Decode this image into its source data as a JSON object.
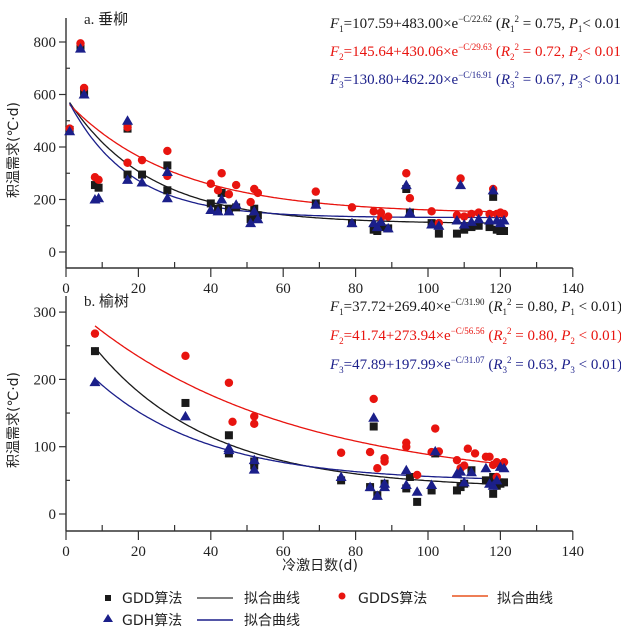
{
  "chart_data": [
    {
      "type": "scatter",
      "panel_label": "a. 垂柳",
      "xlabel": "",
      "ylabel": "积温需求(℃·d)",
      "xlim": [
        0,
        140
      ],
      "ylim": [
        0,
        900
      ],
      "xticks": [
        0,
        20,
        40,
        60,
        80,
        100,
        120,
        140
      ],
      "yticks": [
        0,
        200,
        400,
        600,
        800
      ],
      "grid": false,
      "equations": [
        {
          "lhs": "F",
          "sub": "1",
          "text": "=107.59+483.00×e",
          "exp": "−C/22.62",
          "stats_open": " (R",
          "r_sub": "1",
          "r_sup": "2",
          "stats_mid": " = 0.75, P",
          "p_sub": "1",
          "stats_end": "< 0.01)",
          "color": "#1a1a1a"
        },
        {
          "lhs": "F",
          "sub": "2",
          "text": "=145.64+430.06×e",
          "exp": "−C/29.63",
          "stats_open": " (R",
          "r_sub": "2",
          "r_sup": "2",
          "stats_mid": " = 0.72, P",
          "p_sub": "2",
          "stats_end": "< 0.01)",
          "color": "#e8140f"
        },
        {
          "lhs": "F",
          "sub": "3",
          "text": "=130.80+462.20×e",
          "exp": "−C/16.91",
          "stats_open": " (R",
          "r_sub": "3",
          "r_sup": "2",
          "stats_mid": " = 0.67, P",
          "p_sub": "3",
          "stats_end": "< 0.01)",
          "color": "#1b1f8a"
        }
      ],
      "fits": [
        {
          "name": "GDD拟合曲线",
          "a": 107.59,
          "b": 483.0,
          "c": 22.62,
          "x_range": [
            1,
            121
          ],
          "color": "#1a1a1a"
        },
        {
          "name": "GDDS拟合曲线",
          "a": 145.64,
          "b": 430.06,
          "c": 29.63,
          "x_range": [
            1,
            121
          ],
          "color": "#e8140f"
        },
        {
          "name": "GDH拟合曲线",
          "a": 130.8,
          "b": 462.2,
          "c": 16.91,
          "x_range": [
            1,
            121
          ],
          "color": "#1b1f8a"
        }
      ],
      "series": [
        {
          "name": "GDD算法",
          "marker": "square",
          "color": "#1a1a1a",
          "points": [
            [
              1,
              465
            ],
            [
              4,
              785
            ],
            [
              5,
              610
            ],
            [
              8,
              255
            ],
            [
              9,
              245
            ],
            [
              17,
              470
            ],
            [
              17,
              295
            ],
            [
              21,
              295
            ],
            [
              28,
              330
            ],
            [
              28,
              235
            ],
            [
              40,
              185
            ],
            [
              42,
              165
            ],
            [
              43,
              225
            ],
            [
              45,
              165
            ],
            [
              47,
              170
            ],
            [
              51,
              125
            ],
            [
              52,
              165
            ],
            [
              53,
              140
            ],
            [
              69,
              185
            ],
            [
              79,
              110
            ],
            [
              85,
              85
            ],
            [
              86,
              80
            ],
            [
              87,
              95
            ],
            [
              89,
              90
            ],
            [
              94,
              240
            ],
            [
              95,
              150
            ],
            [
              101,
              110
            ],
            [
              103,
              70
            ],
            [
              108,
              70
            ],
            [
              110,
              85
            ],
            [
              112,
              95
            ],
            [
              114,
              100
            ],
            [
              117,
              95
            ],
            [
              118,
              210
            ],
            [
              119,
              85
            ],
            [
              120,
              80
            ],
            [
              121,
              80
            ]
          ]
        },
        {
          "name": "GDDS算法",
          "marker": "circle",
          "color": "#e8140f",
          "points": [
            [
              1,
              470
            ],
            [
              4,
              795
            ],
            [
              5,
              625
            ],
            [
              8,
              285
            ],
            [
              9,
              275
            ],
            [
              17,
              475
            ],
            [
              17,
              340
            ],
            [
              21,
              350
            ],
            [
              28,
              385
            ],
            [
              28,
              290
            ],
            [
              40,
              260
            ],
            [
              42,
              235
            ],
            [
              43,
              300
            ],
            [
              45,
              220
            ],
            [
              47,
              255
            ],
            [
              51,
              190
            ],
            [
              52,
              240
            ],
            [
              53,
              225
            ],
            [
              69,
              230
            ],
            [
              79,
              170
            ],
            [
              85,
              155
            ],
            [
              87,
              150
            ],
            [
              87,
              130
            ],
            [
              89,
              135
            ],
            [
              94,
              300
            ],
            [
              95,
              205
            ],
            [
              101,
              155
            ],
            [
              103,
              110
            ],
            [
              108,
              140
            ],
            [
              109,
              280
            ],
            [
              110,
              135
            ],
            [
              112,
              145
            ],
            [
              114,
              150
            ],
            [
              117,
              145
            ],
            [
              118,
              240
            ],
            [
              119,
              145
            ],
            [
              120,
              150
            ],
            [
              121,
              145
            ]
          ]
        },
        {
          "name": "GDH算法",
          "marker": "triangle",
          "color": "#1b1f8a",
          "points": [
            [
              1,
              460
            ],
            [
              4,
              775
            ],
            [
              5,
              600
            ],
            [
              8,
              200
            ],
            [
              9,
              205
            ],
            [
              17,
              500
            ],
            [
              17,
              275
            ],
            [
              21,
              265
            ],
            [
              28,
              305
            ],
            [
              28,
              205
            ],
            [
              40,
              160
            ],
            [
              42,
              155
            ],
            [
              43,
              200
            ],
            [
              45,
              155
            ],
            [
              47,
              180
            ],
            [
              51,
              110
            ],
            [
              52,
              155
            ],
            [
              53,
              125
            ],
            [
              69,
              180
            ],
            [
              79,
              110
            ],
            [
              85,
              110
            ],
            [
              86,
              95
            ],
            [
              87,
              115
            ],
            [
              89,
              90
            ],
            [
              94,
              255
            ],
            [
              95,
              150
            ],
            [
              101,
              105
            ],
            [
              103,
              100
            ],
            [
              108,
              120
            ],
            [
              109,
              255
            ],
            [
              110,
              105
            ],
            [
              112,
              115
            ],
            [
              114,
              125
            ],
            [
              117,
              120
            ],
            [
              118,
              235
            ],
            [
              119,
              120
            ],
            [
              120,
              110
            ],
            [
              121,
              120
            ]
          ]
        }
      ]
    },
    {
      "type": "scatter",
      "panel_label": "b. 榆树",
      "xlabel": "冷激日数(d)",
      "ylabel": "积温需求(℃·d)",
      "xlim": [
        0,
        140
      ],
      "ylim": [
        -25,
        320
      ],
      "xticks": [
        0,
        20,
        40,
        60,
        80,
        100,
        120,
        140
      ],
      "yticks": [
        0,
        100,
        200,
        300
      ],
      "grid": false,
      "equations": [
        {
          "lhs": "F",
          "sub": "1",
          "text": "=37.72+269.40×e",
          "exp": "−C/31.90",
          "stats_open": " (R",
          "r_sub": "1",
          "r_sup": "2",
          "stats_mid": " = 0.80, P",
          "p_sub": "1",
          "stats_end": " < 0.01)",
          "color": "#1a1a1a"
        },
        {
          "lhs": "F",
          "sub": "2",
          "text": "=41.74+273.94×e",
          "exp": "−C/56.56",
          "stats_open": " (R",
          "r_sub": "2",
          "r_sup": "2",
          "stats_mid": " = 0.80, P",
          "p_sub": "2",
          "stats_end": " < 0.01)",
          "color": "#e8140f"
        },
        {
          "lhs": "F",
          "sub": "3",
          "text": "=47.89+197.99×e",
          "exp": "−C/31.07",
          "stats_open": " (R",
          "r_sub": "3",
          "r_sup": "2",
          "stats_mid": " = 0.63, P",
          "p_sub": "3",
          "stats_end": " < 0.01)",
          "color": "#1b1f8a"
        }
      ],
      "fits": [
        {
          "name": "GDD拟合曲线",
          "a": 37.72,
          "b": 269.4,
          "c": 31.9,
          "x_range": [
            8,
            121
          ],
          "color": "#1a1a1a"
        },
        {
          "name": "GDDS拟合曲线",
          "a": 41.74,
          "b": 273.94,
          "c": 56.56,
          "x_range": [
            8,
            121
          ],
          "color": "#e8140f"
        },
        {
          "name": "GDH拟合曲线",
          "a": 47.89,
          "b": 197.99,
          "c": 31.07,
          "x_range": [
            8,
            121
          ],
          "color": "#1b1f8a"
        }
      ],
      "series": [
        {
          "name": "GDD算法",
          "marker": "square",
          "color": "#1a1a1a",
          "points": [
            [
              8,
              242
            ],
            [
              33,
              165
            ],
            [
              45,
              117
            ],
            [
              45,
              90
            ],
            [
              52,
              72
            ],
            [
              52,
              78
            ],
            [
              76,
              50
            ],
            [
              84,
              40
            ],
            [
              85,
              130
            ],
            [
              86,
              28
            ],
            [
              88,
              45
            ],
            [
              94,
              38
            ],
            [
              95,
              55
            ],
            [
              97,
              18
            ],
            [
              101,
              35
            ],
            [
              102,
              90
            ],
            [
              108,
              35
            ],
            [
              109,
              40
            ],
            [
              110,
              45
            ],
            [
              112,
              65
            ],
            [
              116,
              50
            ],
            [
              117,
              48
            ],
            [
              118,
              55
            ],
            [
              118,
              30
            ],
            [
              119,
              42
            ],
            [
              120,
              45
            ],
            [
              121,
              47
            ]
          ]
        },
        {
          "name": "GDDS算法",
          "marker": "circle",
          "color": "#e8140f",
          "points": [
            [
              8,
              268
            ],
            [
              33,
              235
            ],
            [
              45,
              195
            ],
            [
              46,
              137
            ],
            [
              52,
              134
            ],
            [
              52,
              145
            ],
            [
              76,
              91
            ],
            [
              84,
              92
            ],
            [
              85,
              171
            ],
            [
              86,
              68
            ],
            [
              88,
              83
            ],
            [
              88,
              78
            ],
            [
              94,
              106
            ],
            [
              94,
              100
            ],
            [
              97,
              58
            ],
            [
              101,
              92
            ],
            [
              102,
              127
            ],
            [
              103,
              93
            ],
            [
              108,
              80
            ],
            [
              109,
              68
            ],
            [
              110,
              72
            ],
            [
              111,
              97
            ],
            [
              113,
              90
            ],
            [
              116,
              85
            ],
            [
              117,
              85
            ],
            [
              118,
              73
            ],
            [
              119,
              55
            ],
            [
              119,
              77
            ],
            [
              120,
              73
            ],
            [
              121,
              77
            ]
          ]
        },
        {
          "name": "GDH算法",
          "marker": "triangle",
          "color": "#1b1f8a",
          "points": [
            [
              8,
              196
            ],
            [
              33,
              145
            ],
            [
              45,
              98
            ],
            [
              45,
              95
            ],
            [
              52,
              80
            ],
            [
              52,
              66
            ],
            [
              76,
              55
            ],
            [
              84,
              40
            ],
            [
              85,
              143
            ],
            [
              86,
              27
            ],
            [
              88,
              40
            ],
            [
              88,
              45
            ],
            [
              94,
              65
            ],
            [
              94,
              43
            ],
            [
              97,
              33
            ],
            [
              101,
              43
            ],
            [
              102,
              93
            ],
            [
              108,
              60
            ],
            [
              109,
              63
            ],
            [
              110,
              47
            ],
            [
              112,
              62
            ],
            [
              116,
              68
            ],
            [
              117,
              45
            ],
            [
              118,
              42
            ],
            [
              119,
              50
            ],
            [
              120,
              70
            ],
            [
              121,
              68
            ]
          ]
        }
      ]
    }
  ],
  "legend": {
    "items": [
      {
        "label": "GDD算法",
        "marker": "square",
        "color": "#1a1a1a"
      },
      {
        "label": "拟合曲线",
        "marker": "line",
        "color": "#555555"
      },
      {
        "label": "GDDS算法",
        "marker": "circle",
        "color": "#e8140f"
      },
      {
        "label": "拟合曲线",
        "marker": "line",
        "color": "#e8531f"
      },
      {
        "label": "GDH算法",
        "marker": "triangle",
        "color": "#1b1f8a"
      },
      {
        "label": "拟合曲线",
        "marker": "line",
        "color": "#1b1f8a"
      }
    ]
  }
}
